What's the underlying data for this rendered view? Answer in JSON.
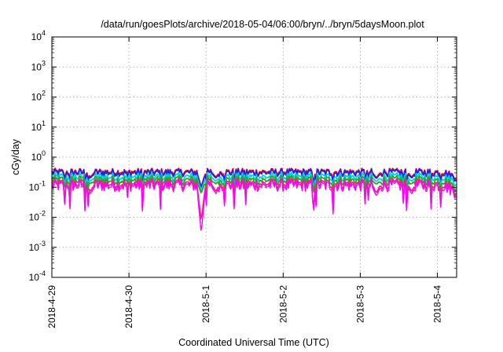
{
  "chart_data": {
    "type": "line",
    "title": "/data/run/goesPlots/archive/2018-05-04/06:00/bryn/../bryn/5daysMoon.plot",
    "xlabel": "Coordinated Universal Time (UTC)",
    "ylabel": "cGy/day",
    "yscale": "log",
    "ylim": [
      0.0001,
      10000
    ],
    "xlim": [
      "2018-04-29T00:00",
      "2018-05-04T06:00"
    ],
    "grid": true,
    "x_ticks": [
      "2018-4-29",
      "2018-4-30",
      "2018-5-1",
      "2018-5-2",
      "2018-5-3",
      "2018-5-4"
    ],
    "y_ticks": [
      {
        "base": "10",
        "exp": "-4",
        "value": 0.0001
      },
      {
        "base": "10",
        "exp": "-3",
        "value": 0.001
      },
      {
        "base": "10",
        "exp": "-2",
        "value": 0.01
      },
      {
        "base": "10",
        "exp": "-1",
        "value": 0.1
      },
      {
        "base": "10",
        "exp": "0",
        "value": 1
      },
      {
        "base": "10",
        "exp": "1",
        "value": 10
      },
      {
        "base": "10",
        "exp": "2",
        "value": 100
      },
      {
        "base": "10",
        "exp": "3",
        "value": 1000
      },
      {
        "base": "10",
        "exp": "4",
        "value": 10000
      }
    ],
    "series": [
      {
        "color": "#ff0000",
        "level": 0.33
      },
      {
        "color": "#2222ee",
        "level": 0.3
      },
      {
        "color": "#00d0e0",
        "level": 0.22
      },
      {
        "color": "#22aa22",
        "level": 0.17
      },
      {
        "color": "#ee2288",
        "level": 0.13
      },
      {
        "color": "#ff00ff",
        "level": 0.11
      }
    ],
    "dips": [
      {
        "x": "2018-04-30T22:30",
        "min": 0.003
      },
      {
        "x": "2018-05-01T03:00",
        "min": 0.06
      },
      {
        "x": "2018-05-03T05:00",
        "min": 0.05
      },
      {
        "x": "2018-04-29T12:00",
        "min": 0.06
      },
      {
        "x": "2018-05-03T16:00",
        "min": 0.06
      }
    ]
  }
}
